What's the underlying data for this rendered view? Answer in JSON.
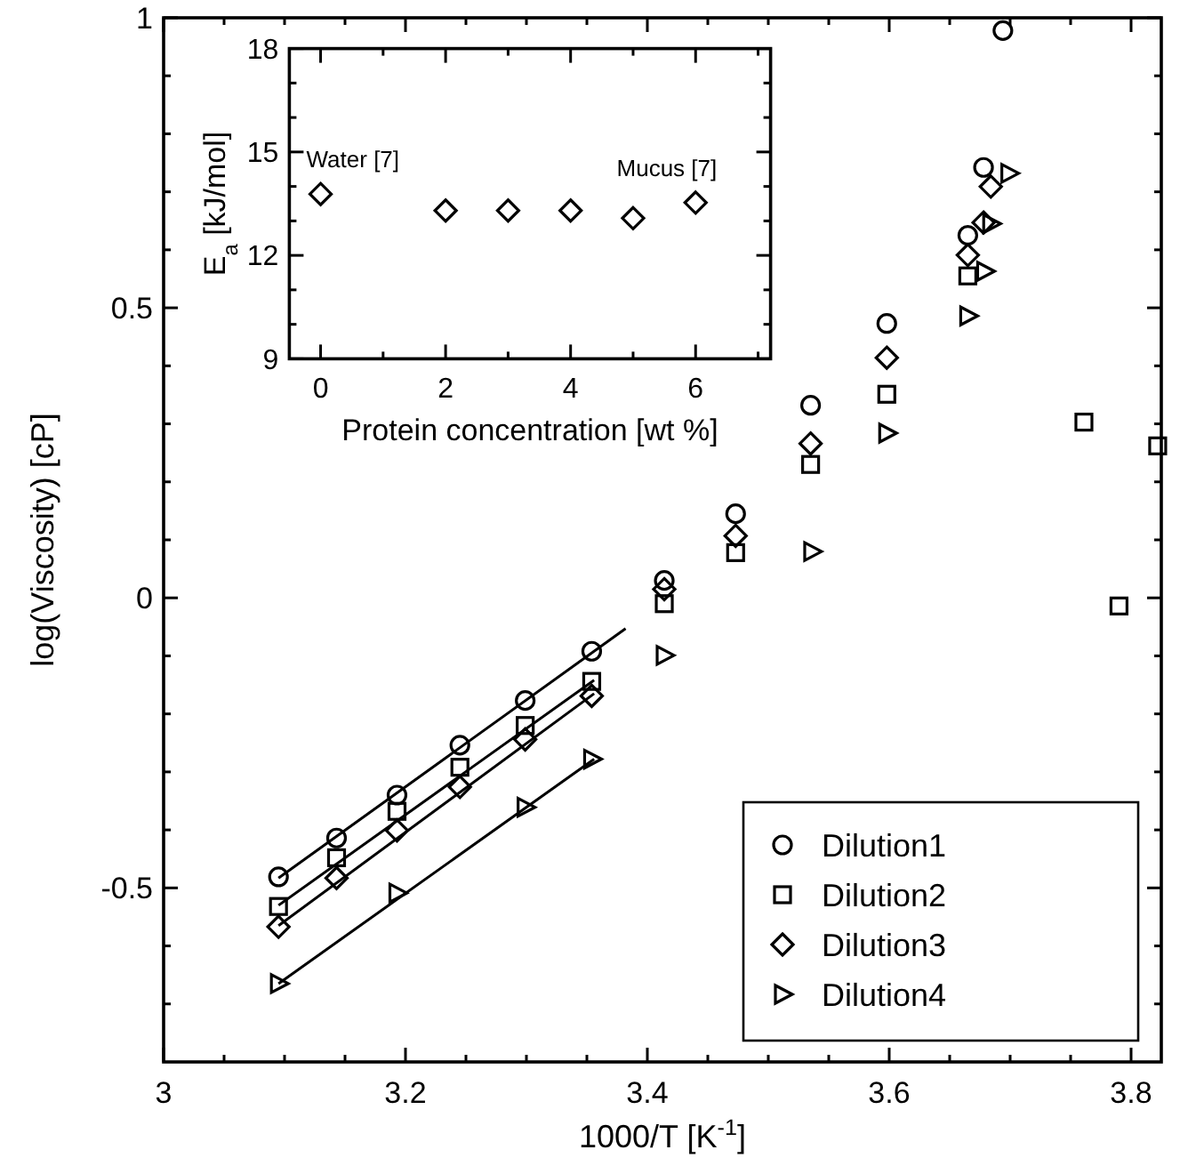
{
  "chart_data": [
    {
      "type": "scatter",
      "xlabel": "1000/T [K$^{-1}$]",
      "ylabel": "log(Viscosity) [cP]",
      "xlim": [
        3,
        3.825
      ],
      "ylim": [
        -0.8,
        1
      ],
      "xticks": [
        3,
        {
          "value": 3.05,
          "label": null
        },
        {
          "value": 3.1,
          "label": null
        },
        {
          "value": 3.15,
          "label": null
        },
        3.2,
        {
          "value": 3.25,
          "label": null
        },
        {
          "value": 3.3,
          "label": null
        },
        {
          "value": 3.35,
          "label": null
        },
        3.4,
        {
          "value": 3.45,
          "label": null
        },
        {
          "value": 3.5,
          "label": null
        },
        {
          "value": 3.55,
          "label": null
        },
        3.6,
        {
          "value": 3.65,
          "label": null
        },
        {
          "value": 3.7,
          "label": null
        },
        {
          "value": 3.75,
          "label": null
        },
        3.8
      ],
      "yticks": [
        {
          "value": -0.7,
          "label": null
        },
        {
          "value": -0.6,
          "label": null
        },
        -0.5,
        {
          "value": -0.4,
          "label": null
        },
        {
          "value": -0.3,
          "label": null
        },
        {
          "value": -0.2,
          "label": null
        },
        {
          "value": -0.1,
          "label": null
        },
        0,
        {
          "value": 0.1,
          "label": null
        },
        {
          "value": 0.2,
          "label": null
        },
        {
          "value": 0.3,
          "label": null
        },
        {
          "value": 0.4,
          "label": null
        },
        0.5,
        {
          "value": 0.6,
          "label": null
        },
        {
          "value": 0.7,
          "label": null
        },
        {
          "value": 0.8,
          "label": null
        },
        {
          "value": 0.9,
          "label": null
        },
        1
      ],
      "legend": "bottom right",
      "grid": false,
      "series": [
        {
          "name": "Dilution1",
          "color": "#000000",
          "marker": "circle",
          "x": [
            3.095,
            3.143,
            3.193,
            3.245,
            3.299,
            3.354,
            3.414,
            3.473,
            3.535,
            3.598,
            3.665,
            3.678,
            3.694
          ],
          "values": [
            -0.481,
            -0.414,
            -0.34,
            -0.254,
            -0.177,
            -0.092,
            0.03,
            0.145,
            0.332,
            0.473,
            0.625,
            0.742,
            0.978
          ]
        },
        {
          "name": "Dilution2",
          "color": "#000000",
          "marker": "square",
          "x": [
            3.095,
            3.143,
            3.193,
            3.245,
            3.299,
            3.354,
            3.414,
            3.473,
            3.535,
            3.598,
            3.665,
            3.761,
            3.79,
            3.822
          ],
          "values": [
            -0.532,
            -0.448,
            -0.368,
            -0.292,
            -0.22,
            -0.144,
            -0.01,
            0.078,
            0.23,
            0.351,
            0.555,
            0.303,
            -0.014,
            0.262
          ]
        },
        {
          "name": "Dilution3",
          "color": "#000000",
          "marker": "diamond",
          "x": [
            3.095,
            3.143,
            3.193,
            3.245,
            3.299,
            3.354,
            3.414,
            3.473,
            3.535,
            3.598,
            3.665,
            3.678,
            3.684
          ],
          "values": [
            -0.567,
            -0.483,
            -0.401,
            -0.326,
            -0.244,
            -0.169,
            0.015,
            0.107,
            0.266,
            0.414,
            0.591,
            0.647,
            0.709
          ]
        },
        {
          "name": "Dilution4",
          "color": "#000000",
          "marker": "triangle",
          "x": [
            3.095,
            3.193,
            3.299,
            3.354,
            3.414,
            3.536,
            3.598,
            3.665,
            3.679,
            3.684,
            3.699
          ],
          "values": [
            -0.665,
            -0.509,
            -0.361,
            -0.278,
            -0.099,
            0.08,
            0.284,
            0.486,
            0.563,
            0.645,
            0.732
          ]
        },
        {
          "type": "line",
          "color": "#000000",
          "marker": "none",
          "x": [
            3.095,
            3.382
          ],
          "values": [
            -0.483,
            -0.053
          ]
        },
        {
          "type": "line",
          "color": "#000000",
          "marker": "none",
          "x": [
            3.095,
            3.356
          ],
          "values": [
            -0.53,
            -0.142
          ]
        },
        {
          "type": "line",
          "color": "#000000",
          "marker": "none",
          "x": [
            3.095,
            3.356
          ],
          "values": [
            -0.565,
            -0.165
          ]
        },
        {
          "type": "line",
          "color": "#000000",
          "marker": "none",
          "x": [
            3.095,
            3.356
          ],
          "values": [
            -0.665,
            -0.278
          ]
        }
      ]
    },
    {
      "type": "scatter",
      "xlabel": "Protein concentration [wt %]",
      "ylabel": "E$_{a}$ [kJ/mol]",
      "xlim": [
        -0.5,
        7.2
      ],
      "ylim": [
        9,
        18
      ],
      "xticks": [
        0,
        {
          "value": 1,
          "label": null
        },
        2,
        {
          "value": 3,
          "label": null
        },
        4,
        {
          "value": 5,
          "label": null
        },
        6,
        {
          "value": 7,
          "label": null
        }
      ],
      "yticks": [
        9,
        {
          "value": 10,
          "label": null
        },
        {
          "value": 11,
          "label": null
        },
        12,
        {
          "value": 13,
          "label": null
        },
        {
          "value": 14,
          "label": null
        },
        15,
        {
          "value": 16,
          "label": null
        },
        {
          "value": 17,
          "label": null
        },
        18
      ],
      "grid": false,
      "series": [
        {
          "color": "#000000",
          "marker": "diamond",
          "x": [
            0,
            2,
            3,
            4,
            5,
            6
          ],
          "values": [
            13.78,
            13.3,
            13.3,
            13.3,
            13.08,
            13.53
          ]
        }
      ],
      "annotations": [
        {
          "text": "Water [7]",
          "x": 0,
          "y": 13.78
        },
        {
          "text": "Mucus [7]",
          "x": 6,
          "y": 13.53
        }
      ]
    }
  ]
}
